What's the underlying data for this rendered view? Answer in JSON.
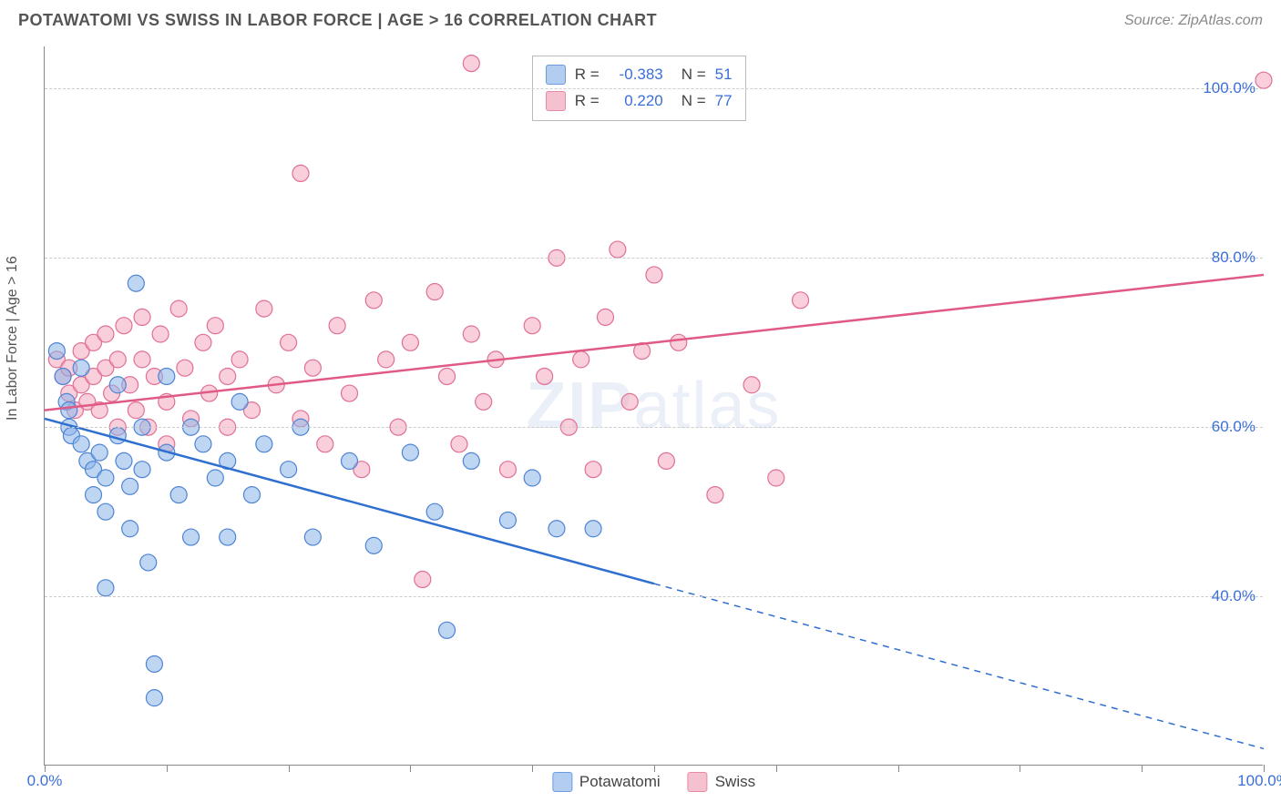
{
  "header": {
    "title": "POTAWATOMI VS SWISS IN LABOR FORCE | AGE > 16 CORRELATION CHART",
    "source": "Source: ZipAtlas.com"
  },
  "watermark": {
    "bold": "ZIP",
    "rest": "atlas"
  },
  "axes": {
    "y_title": "In Labor Force | Age > 16",
    "xlim": [
      0,
      100
    ],
    "ylim": [
      20,
      105
    ],
    "y_gridlines": [
      40,
      60,
      80,
      100
    ],
    "y_labels": [
      "40.0%",
      "60.0%",
      "80.0%",
      "100.0%"
    ],
    "x_ticks": [
      0,
      10,
      20,
      30,
      40,
      50,
      60,
      70,
      80,
      90,
      100
    ],
    "x_labels_shown": {
      "0": "0.0%",
      "100": "100.0%"
    },
    "grid_color": "#cccccc",
    "axis_color": "#888888",
    "label_color": "#3b6fd6",
    "label_fontsize": 17
  },
  "legend_stats": {
    "rows": [
      {
        "color_fill": "#b3cdf0",
        "color_border": "#6a9be0",
        "r_label": "R =",
        "r": "-0.383",
        "n_label": "N =",
        "n": "51"
      },
      {
        "color_fill": "#f5c1cf",
        "color_border": "#e88aa5",
        "r_label": "R =",
        "r": "0.220",
        "n_label": "N =",
        "n": "77"
      }
    ]
  },
  "bottom_legend": {
    "items": [
      {
        "color_fill": "#b3cdf0",
        "color_border": "#6a9be0",
        "label": "Potawatomi"
      },
      {
        "color_fill": "#f5c1cf",
        "color_border": "#e88aa5",
        "label": "Swiss"
      }
    ]
  },
  "series": {
    "marker_radius": 9,
    "marker_opacity": 0.55,
    "potawatomi": {
      "color_fill": "#8bb4ea",
      "color_stroke": "#4f84d4",
      "line_color": "#2f6fd0",
      "line_width": 2.5,
      "regression": {
        "x1": 0,
        "y1": 61,
        "x2": 100,
        "y2": 22,
        "solid_until_x": 50
      },
      "points": [
        [
          1,
          69
        ],
        [
          1.5,
          66
        ],
        [
          1.8,
          63
        ],
        [
          2,
          62
        ],
        [
          2,
          60
        ],
        [
          2.2,
          59
        ],
        [
          3,
          67
        ],
        [
          3,
          58
        ],
        [
          3.5,
          56
        ],
        [
          4,
          55
        ],
        [
          4,
          52
        ],
        [
          4.5,
          57
        ],
        [
          5,
          54
        ],
        [
          5,
          50
        ],
        [
          5,
          41
        ],
        [
          6,
          65
        ],
        [
          6,
          59
        ],
        [
          6.5,
          56
        ],
        [
          7,
          53
        ],
        [
          7,
          48
        ],
        [
          7.5,
          77
        ],
        [
          8,
          60
        ],
        [
          8,
          55
        ],
        [
          8.5,
          44
        ],
        [
          9,
          32
        ],
        [
          9,
          28
        ],
        [
          10,
          66
        ],
        [
          10,
          57
        ],
        [
          11,
          52
        ],
        [
          12,
          60
        ],
        [
          12,
          47
        ],
        [
          13,
          58
        ],
        [
          14,
          54
        ],
        [
          15,
          56
        ],
        [
          15,
          47
        ],
        [
          16,
          63
        ],
        [
          17,
          52
        ],
        [
          18,
          58
        ],
        [
          20,
          55
        ],
        [
          21,
          60
        ],
        [
          22,
          47
        ],
        [
          25,
          56
        ],
        [
          27,
          46
        ],
        [
          30,
          57
        ],
        [
          32,
          50
        ],
        [
          33,
          36
        ],
        [
          35,
          56
        ],
        [
          38,
          49
        ],
        [
          40,
          54
        ],
        [
          42,
          48
        ],
        [
          45,
          48
        ]
      ]
    },
    "swiss": {
      "color_fill": "#f2a8bd",
      "color_stroke": "#e07095",
      "line_color": "#e05a85",
      "line_width": 2.5,
      "regression": {
        "x1": 0,
        "y1": 62,
        "x2": 100,
        "y2": 78
      },
      "points": [
        [
          1,
          68
        ],
        [
          1.5,
          66
        ],
        [
          2,
          67
        ],
        [
          2,
          64
        ],
        [
          2.5,
          62
        ],
        [
          3,
          69
        ],
        [
          3,
          65
        ],
        [
          3.5,
          63
        ],
        [
          4,
          70
        ],
        [
          4,
          66
        ],
        [
          4.5,
          62
        ],
        [
          5,
          71
        ],
        [
          5,
          67
        ],
        [
          5.5,
          64
        ],
        [
          6,
          68
        ],
        [
          6,
          60
        ],
        [
          6.5,
          72
        ],
        [
          7,
          65
        ],
        [
          7.5,
          62
        ],
        [
          8,
          73
        ],
        [
          8,
          68
        ],
        [
          8.5,
          60
        ],
        [
          9,
          66
        ],
        [
          9.5,
          71
        ],
        [
          10,
          63
        ],
        [
          10,
          58
        ],
        [
          11,
          74
        ],
        [
          11.5,
          67
        ],
        [
          12,
          61
        ],
        [
          13,
          70
        ],
        [
          13.5,
          64
        ],
        [
          14,
          72
        ],
        [
          15,
          66
        ],
        [
          15,
          60
        ],
        [
          16,
          68
        ],
        [
          17,
          62
        ],
        [
          18,
          74
        ],
        [
          19,
          65
        ],
        [
          20,
          70
        ],
        [
          21,
          90
        ],
        [
          21,
          61
        ],
        [
          22,
          67
        ],
        [
          23,
          58
        ],
        [
          24,
          72
        ],
        [
          25,
          64
        ],
        [
          26,
          55
        ],
        [
          27,
          75
        ],
        [
          28,
          68
        ],
        [
          29,
          60
        ],
        [
          30,
          70
        ],
        [
          31,
          42
        ],
        [
          32,
          76
        ],
        [
          33,
          66
        ],
        [
          34,
          58
        ],
        [
          35,
          103
        ],
        [
          35,
          71
        ],
        [
          36,
          63
        ],
        [
          37,
          68
        ],
        [
          38,
          55
        ],
        [
          40,
          72
        ],
        [
          41,
          66
        ],
        [
          42,
          80
        ],
        [
          43,
          60
        ],
        [
          44,
          68
        ],
        [
          45,
          55
        ],
        [
          46,
          73
        ],
        [
          47,
          81
        ],
        [
          48,
          63
        ],
        [
          49,
          69
        ],
        [
          50,
          78
        ],
        [
          51,
          56
        ],
        [
          52,
          70
        ],
        [
          55,
          52
        ],
        [
          58,
          65
        ],
        [
          60,
          54
        ],
        [
          62,
          75
        ],
        [
          100,
          101
        ]
      ]
    }
  }
}
